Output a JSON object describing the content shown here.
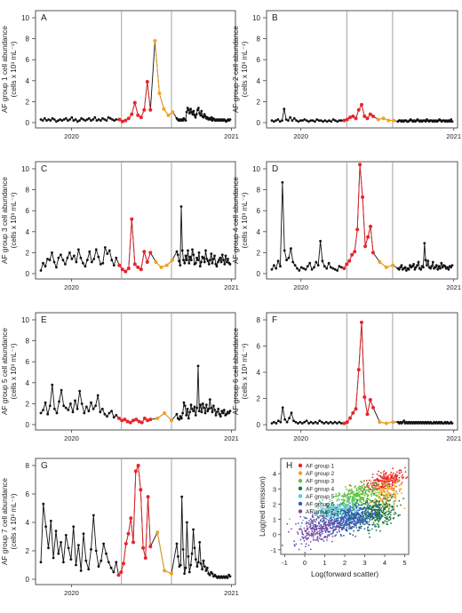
{
  "chart_data": [
    {
      "type": "line",
      "panel": "A",
      "ylabel": "AF group 1 cell abundance",
      "yunit": "(cells x 10³ mL⁻¹)",
      "xticks": [
        "2020",
        "2021"
      ],
      "ylim": [
        0,
        10
      ],
      "yticks": [
        0,
        2,
        4,
        6,
        8,
        10
      ],
      "vlines": [
        0.43,
        0.68
      ],
      "series_black": [
        0.3,
        0.2,
        0.4,
        0.2,
        0.3,
        0.2,
        0.4,
        0.3,
        0.1,
        0.2,
        0.3,
        0.2,
        0.3,
        0.4,
        0.2,
        0.3,
        0.5,
        0.2,
        0.3,
        0.1,
        0.2,
        0.4,
        0.3,
        0.2,
        0.3,
        0.4,
        0.2,
        0.3,
        0.5,
        0.2,
        0.3,
        0.2,
        0.4,
        0.3,
        0.2,
        0.5,
        0.4,
        0.3,
        0.2,
        0.3,
        0.4,
        0.3,
        0.2,
        0.3,
        0.2,
        0.3,
        0.2,
        0.4,
        0.3,
        0.2,
        1.0,
        1.4,
        1.2,
        0.9,
        1.3,
        1.0,
        0.8,
        1.1,
        0.7,
        0.5,
        0.8,
        1.2,
        1.4,
        0.9,
        0.7,
        1.1,
        0.6,
        0.5,
        0.8,
        0.6,
        0.4,
        0.5,
        0.3,
        0.4,
        0.3,
        0.5,
        0.2,
        0.4,
        0.3,
        0.2,
        0.3,
        0.2,
        0.3,
        0.2,
        0.3,
        0.2,
        0.3,
        0.2,
        0.3,
        0.2,
        0.1,
        0.2,
        0.3,
        0.2,
        0.3
      ],
      "red": [
        0.3,
        0.1,
        0.2,
        0.4,
        0.8,
        1.9,
        0.7,
        0.5,
        1.2,
        3.9,
        1.2
      ],
      "orange": [
        7.8,
        2.8,
        1.3,
        0.7,
        1.0
      ]
    },
    {
      "type": "line",
      "panel": "B",
      "ylabel": "AF group 2 cell abundance",
      "yunit": "(cells x 10³ mL⁻¹)",
      "xticks": [
        "2020",
        "2021"
      ],
      "ylim": [
        0,
        10
      ],
      "yticks": [
        0,
        2,
        4,
        6,
        8,
        10
      ],
      "vlines": [
        0.42,
        0.66
      ],
      "series_black": [
        0.2,
        0.1,
        0.2,
        0.3,
        0.1,
        0.2,
        1.3,
        0.3,
        0.2,
        0.5,
        0.2,
        0.4,
        0.2,
        0.1,
        0.2,
        0.2,
        0.3,
        0.2,
        0.1,
        0.2,
        0.2,
        0.1,
        0.3,
        0.2,
        0.2,
        0.1,
        0.2,
        0.1,
        0.2,
        0.1,
        0.3,
        0.2,
        0.1,
        0.2,
        0.2,
        0.1,
        0.2,
        0.2,
        0.1,
        0.2,
        0.1,
        0.2,
        0.2,
        0.1,
        0.1,
        0.2,
        0.3,
        0.2,
        0.1,
        0.2,
        0.1,
        0.2,
        0.3,
        0.2,
        0.1,
        0.2,
        0.1,
        0.2,
        0.2,
        0.1,
        0.3,
        0.2,
        0.1,
        0.2,
        0.2,
        0.1,
        0.2,
        0.1,
        0.2,
        0.1,
        0.2,
        0.3,
        0.2,
        0.1,
        0.2,
        0.2,
        0.1,
        0.2,
        0.1,
        0.2,
        0.1,
        0.3,
        0.1
      ],
      "red": [
        0.2,
        0.3,
        0.5,
        0.6,
        0.4,
        1.2,
        1.7,
        0.6,
        0.4,
        0.8,
        0.6
      ],
      "orange": [
        0.3,
        0.4,
        0.2,
        0.2
      ]
    },
    {
      "type": "line",
      "panel": "C",
      "ylabel": "AF group 3 cell abundance",
      "yunit": "(cells x 10³ mL⁻¹)",
      "xticks": [
        "2020",
        "2021"
      ],
      "ylim": [
        0,
        10
      ],
      "yticks": [
        0,
        2,
        4,
        6,
        8,
        10
      ],
      "vlines": [
        0.43,
        0.68
      ],
      "series_black": [
        0.3,
        1.0,
        0.7,
        1.4,
        1.3,
        2.0,
        1.1,
        0.6,
        1.5,
        1.8,
        1.3,
        0.9,
        1.5,
        2.0,
        1.4,
        1.7,
        1.1,
        2.3,
        1.5,
        1.0,
        0.7,
        1.3,
        2.1,
        1.1,
        1.4,
        2.3,
        1.6,
        0.9,
        1.0,
        2.5,
        1.9,
        2.2,
        1.3,
        0.8,
        1.5,
        2.1,
        1.8,
        1.2,
        0.8,
        6.4,
        2.2,
        1.3,
        1.0,
        1.7,
        1.3,
        2.2,
        1.0,
        1.6,
        1.3,
        2.3,
        1.8,
        0.9,
        1.0,
        1.5,
        1.3,
        2.0,
        0.7,
        1.1,
        1.6,
        1.5,
        1.1,
        2.2,
        1.4,
        1.2,
        0.9,
        1.3,
        1.9,
        1.0,
        1.4,
        1.7,
        0.9,
        0.7,
        1.1,
        1.3,
        1.5,
        1.1,
        1.8,
        1.3,
        0.9,
        1.7,
        1.1,
        1.4,
        1.0,
        0.9
      ],
      "red": [
        0.8,
        0.4,
        0.2,
        0.5,
        5.2,
        0.9,
        0.6,
        0.4,
        2.1,
        1.1,
        2.0
      ],
      "orange": [
        1.1,
        0.6,
        0.8,
        1.3
      ]
    },
    {
      "type": "line",
      "panel": "D",
      "ylabel": "AF group 4 cell abundance",
      "yunit": "(cells x 10³ mL⁻¹)",
      "xticks": [
        "2020",
        "2021"
      ],
      "ylim": [
        0,
        10
      ],
      "yticks": [
        0,
        2,
        4,
        6,
        8,
        10
      ],
      "vlines": [
        0.42,
        0.66
      ],
      "series_black": [
        0.4,
        0.8,
        0.5,
        1.2,
        0.7,
        8.7,
        2.2,
        1.3,
        1.5,
        2.4,
        1.1,
        0.8,
        0.5,
        0.3,
        0.6,
        0.5,
        0.4,
        0.7,
        1.0,
        0.4,
        0.6,
        1.1,
        0.8,
        3.1,
        1.2,
        0.7,
        0.5,
        1.0,
        0.6,
        0.5,
        0.4,
        0.3,
        0.7,
        0.6,
        0.5,
        0.4,
        0.6,
        0.8,
        0.4,
        0.5,
        0.6,
        0.3,
        0.5,
        0.4,
        0.8,
        0.6,
        0.7,
        0.9,
        0.4,
        0.6,
        0.8,
        1.1,
        0.5,
        0.4,
        0.7,
        0.6,
        2.9,
        1.3,
        0.8,
        1.2,
        0.6,
        0.5,
        0.7,
        1.1,
        0.5,
        0.6,
        0.8,
        0.4,
        0.7,
        0.5,
        1.0,
        0.6,
        0.8,
        0.7,
        0.5,
        0.6,
        0.4,
        0.7,
        0.6,
        0.8
      ],
      "red": [
        0.5,
        0.9,
        1.2,
        1.8,
        2.1,
        4.2,
        10.4,
        7.3,
        2.6,
        3.5,
        4.5,
        2.0
      ],
      "orange": [
        1.1,
        0.6,
        0.8
      ]
    },
    {
      "type": "line",
      "panel": "E",
      "ylabel": "AF group 5 cell abundance",
      "yunit": "(cells x 10³ mL⁻¹)",
      "xticks": [
        "2020",
        "2021"
      ],
      "ylim": [
        0,
        10
      ],
      "yticks": [
        0,
        2,
        4,
        6,
        8,
        10
      ],
      "vlines": [
        0.43,
        0.68
      ],
      "series_black": [
        1.1,
        1.4,
        2.1,
        1.0,
        1.8,
        3.8,
        1.5,
        1.1,
        2.2,
        3.3,
        1.8,
        1.6,
        1.4,
        2.0,
        1.2,
        2.3,
        1.5,
        3.2,
        2.0,
        1.1,
        1.7,
        1.3,
        2.1,
        1.5,
        1.8,
        2.8,
        1.2,
        1.5,
        1.0,
        0.8,
        1.1,
        1.3,
        0.7,
        0.9,
        1.0,
        0.6,
        0.5,
        0.8,
        0.6,
        1.1,
        2.1,
        1.8,
        0.9,
        1.5,
        0.6,
        1.2,
        1.9,
        1.5,
        1.3,
        1.7,
        0.9,
        1.6,
        5.6,
        1.3,
        1.9,
        1.2,
        2.0,
        1.6,
        1.1,
        1.9,
        1.3,
        1.5,
        2.4,
        1.6,
        1.2,
        1.8,
        1.4,
        0.9,
        1.2,
        1.5,
        1.0,
        0.8,
        1.3,
        1.1,
        1.4,
        0.9,
        1.0,
        1.2,
        1.1,
        1.3
      ],
      "red": [
        0.6,
        0.4,
        0.5,
        0.3,
        0.2,
        0.4,
        0.5,
        0.3,
        0.2,
        0.6,
        0.4,
        0.5
      ],
      "orange": [
        0.6,
        1.1,
        0.4
      ]
    },
    {
      "type": "line",
      "panel": "F",
      "ylabel": "AF group 6 cell abundance",
      "yunit": "(cells x 10³ mL⁻¹)",
      "xticks": [
        "2020",
        "2021"
      ],
      "ylim": [
        0,
        8
      ],
      "yticks": [
        0,
        2,
        4,
        6,
        8
      ],
      "vlines": [
        0.42,
        0.66
      ],
      "series_black": [
        0.1,
        0.2,
        0.1,
        0.3,
        0.2,
        1.3,
        0.4,
        0.2,
        0.5,
        0.9,
        0.3,
        0.2,
        0.1,
        0.2,
        0.1,
        0.2,
        0.3,
        0.1,
        0.2,
        0.1,
        0.2,
        0.1,
        0.3,
        0.2,
        0.1,
        0.2,
        0.1,
        0.2,
        0.1,
        0.2,
        0.1,
        0.2,
        0.1,
        0.2,
        0.1,
        0.2,
        0.1,
        0.2,
        0.3,
        0.1,
        0.2,
        0.1,
        0.2,
        0.1,
        0.2,
        0.1,
        0.2,
        0.1,
        0.2,
        0.1,
        0.2,
        0.1,
        0.2,
        0.1,
        0.2,
        0.1,
        0.2,
        0.1,
        0.2,
        0.1,
        0.2,
        0.1,
        0.1,
        0.2,
        0.1,
        0.2,
        0.1,
        0.2,
        0.1,
        0.2,
        0.1,
        0.1,
        0.2,
        0.1,
        0.2,
        0.1,
        0.1,
        0.2,
        0.1
      ],
      "red": [
        0.1,
        0.2,
        0.5,
        0.9,
        1.2,
        4.2,
        7.8,
        2.1,
        0.8,
        1.9,
        1.3
      ],
      "orange": [
        0.2,
        0.1,
        0.2
      ]
    },
    {
      "type": "line",
      "panel": "G",
      "ylabel": "AF group 7 cell abundance",
      "yunit": "(cells x 10³ mL⁻¹)",
      "xticks": [
        "2020",
        "2021"
      ],
      "ylim": [
        0,
        8
      ],
      "yticks": [
        0,
        2,
        4,
        6,
        8
      ],
      "vlines": [
        0.43,
        0.68
      ],
      "series_black": [
        1.2,
        5.3,
        3.7,
        2.2,
        4.1,
        1.5,
        3.4,
        1.8,
        2.6,
        1.2,
        3.1,
        2.2,
        1.4,
        3.7,
        1.0,
        2.4,
        0.6,
        3.2,
        1.3,
        0.7,
        2.1,
        4.5,
        2.0,
        0.9,
        1.3,
        2.5,
        1.8,
        1.2,
        0.8,
        0.5,
        1.2,
        2.5,
        1.6,
        0.9,
        1.0,
        5.8,
        2.1,
        0.4,
        0.8,
        4.0,
        1.6,
        0.5,
        1.0,
        1.8,
        3.5,
        2.2,
        1.4,
        0.9,
        1.2,
        2.6,
        1.1,
        0.7,
        1.3,
        0.9,
        0.6,
        0.8,
        0.4,
        0.3,
        0.5,
        0.4,
        0.2,
        0.3,
        0.2,
        0.1,
        0.2,
        0.1,
        0.2,
        0.1,
        0.2,
        0.1,
        0.2,
        0.1,
        0.3,
        0.2
      ],
      "red": [
        0.3,
        0.5,
        1.1,
        2.5,
        3.2,
        4.3,
        2.6,
        7.6,
        8.0,
        6.3,
        2.2,
        1.5,
        5.8,
        2.3
      ],
      "orange": [
        3.3,
        0.6,
        0.4
      ]
    },
    {
      "type": "scatter",
      "panel": "H",
      "xlabel": "Log(forward scatter)",
      "ylabel": "Log(red emission)",
      "xticks": [
        "-1",
        "0",
        "1",
        "2",
        "3",
        "4",
        "5"
      ],
      "yticks": [
        "-1",
        "0",
        "1",
        "2",
        "3",
        "4"
      ],
      "xlim": [
        -1.2,
        5.2
      ],
      "ylim": [
        -1.3,
        5.0
      ],
      "legend": [
        "AF group 1",
        "AF group 2",
        "AF group 3",
        "AF group 4",
        "AF group 5",
        "AF group 6",
        "AF group 7"
      ],
      "legend_position": "top-left",
      "clusters": [
        {
          "name": "AF group 1",
          "color": "#e8252b",
          "cx": 4.0,
          "cy": 3.5,
          "sx": 0.5,
          "sy": 0.35,
          "n": 240,
          "corr": 0.5
        },
        {
          "name": "AF group 2",
          "color": "#f4a21b",
          "cx": 4.1,
          "cy": 2.6,
          "sx": 0.4,
          "sy": 0.5,
          "n": 160,
          "corr": 0.3
        },
        {
          "name": "AF group 3",
          "color": "#62c240",
          "cx": 2.6,
          "cy": 2.5,
          "sx": 0.65,
          "sy": 0.45,
          "n": 320,
          "corr": 0.55
        },
        {
          "name": "AF group 4",
          "color": "#18773a",
          "cx": 3.5,
          "cy": 1.4,
          "sx": 0.55,
          "sy": 0.5,
          "n": 320,
          "corr": 0.3
        },
        {
          "name": "AF group 5",
          "color": "#5fc9cf",
          "cx": 1.5,
          "cy": 1.5,
          "sx": 0.6,
          "sy": 0.35,
          "n": 300,
          "corr": 0.4
        },
        {
          "name": "AF group 6",
          "color": "#2f5fb4",
          "cx": 2.2,
          "cy": 1.0,
          "sx": 0.7,
          "sy": 0.45,
          "n": 440,
          "corr": 0.35
        },
        {
          "name": "AF group 7",
          "color": "#7a4aa6",
          "cx": 0.7,
          "cy": 0.4,
          "sx": 0.65,
          "sy": 0.5,
          "n": 260,
          "corr": 0.35
        }
      ]
    }
  ],
  "colors": {
    "black": "#111111",
    "red": "#e8252b",
    "orange": "#f4a21b",
    "axis": "#444444",
    "vline": "#999999"
  }
}
